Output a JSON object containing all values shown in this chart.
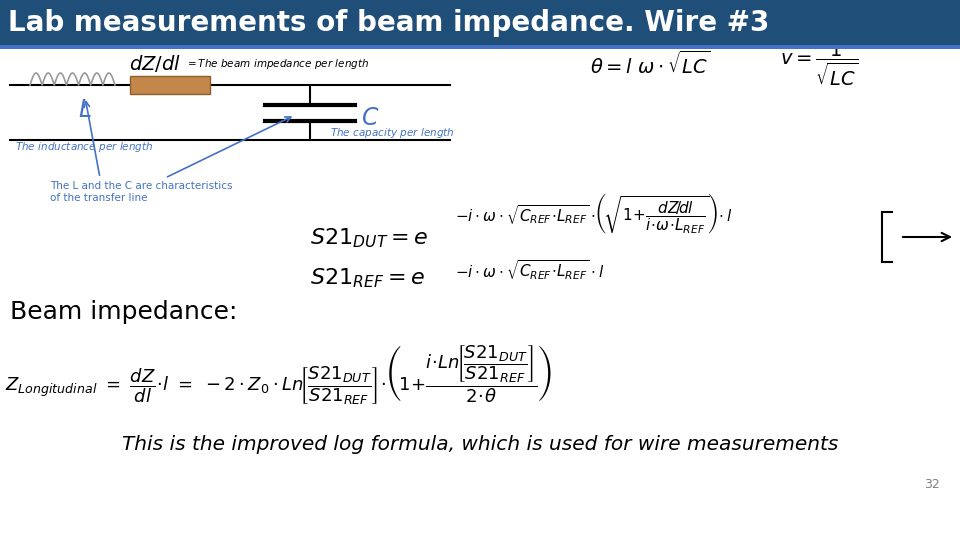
{
  "title": "Lab measurements of beam impedance. Wire #3",
  "title_bg": "#1F4E79",
  "title_color": "#FFFFFF",
  "bg_color": "#FFFFFF",
  "subtitle_italic": "This is the improved log formula, which is used for wire measurements",
  "page_number": "32",
  "beam_impedance_label": "Beam impedance:"
}
